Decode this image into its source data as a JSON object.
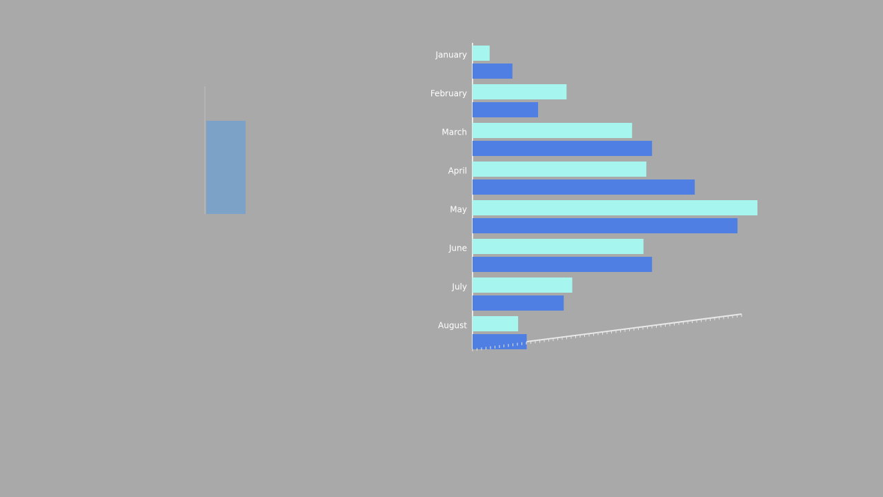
{
  "chart_data": {
    "type": "bar",
    "orientation": "horizontal",
    "categories": [
      "January",
      "February",
      "March",
      "April",
      "May",
      "June",
      "July",
      "August"
    ],
    "series": [
      {
        "color": "#a6f5ee",
        "values": [
          6,
          33,
          56,
          61,
          100,
          60,
          35,
          16
        ]
      },
      {
        "color": "#4f7fe3",
        "values": [
          14,
          23,
          63,
          78,
          93,
          63,
          32,
          19
        ]
      }
    ],
    "xlim": [
      0,
      100
    ]
  }
}
